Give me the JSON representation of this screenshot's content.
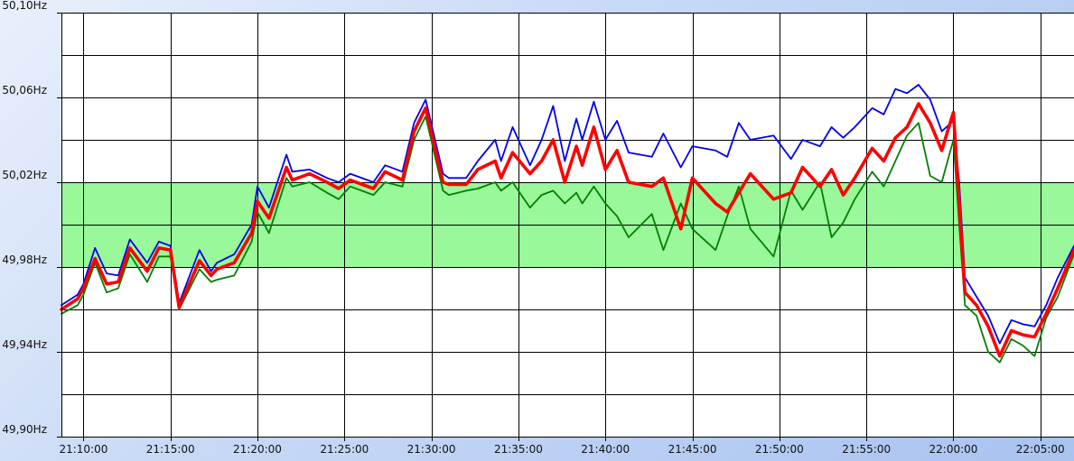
{
  "chart_data": {
    "type": "line",
    "title": "",
    "xlabel": "",
    "ylabel": "",
    "y_unit": "Hz",
    "ylim": [
      49.9,
      50.1
    ],
    "y_ticks": [
      "50,10Hz",
      "50,06Hz",
      "50,02Hz",
      "49,98Hz",
      "49,94Hz",
      "49,90Hz"
    ],
    "y_tick_values": [
      50.1,
      50.06,
      50.02,
      49.98,
      49.94,
      49.9
    ],
    "x_ticks": [
      "21:10:00",
      "21:15:00",
      "21:20:00",
      "21:25:00",
      "21:30:00",
      "21:35:00",
      "21:40:00",
      "21:45:00",
      "21:50:00",
      "21:55:00",
      "22:00:00",
      "22:05:00"
    ],
    "xlim": [
      "21:08:44",
      "22:06:56"
    ],
    "grid": true,
    "band": {
      "from": 49.98,
      "to": 50.02,
      "color": "#99f899"
    },
    "series": [
      {
        "color": "#0000ee",
        "x": [
          "21:08:44",
          "21:09:40",
          "21:10:00",
          "21:10:40",
          "21:11:20",
          "21:12:00",
          "21:12:40",
          "21:13:40",
          "21:14:20",
          "21:15:00",
          "21:15:30",
          "21:16:40",
          "21:17:20",
          "21:17:40",
          "21:18:40",
          "21:19:40",
          "21:20:00",
          "21:20:40",
          "21:21:40",
          "21:22:00",
          "21:23:00",
          "21:24:00",
          "21:24:40",
          "21:25:20",
          "21:26:40",
          "21:27:20",
          "21:28:20",
          "21:29:00",
          "21:29:40",
          "21:30:40",
          "21:31:00",
          "21:32:00",
          "21:32:40",
          "21:33:40",
          "21:34:00",
          "21:34:40",
          "21:35:40",
          "21:36:20",
          "21:37:00",
          "21:37:40",
          "21:38:20",
          "21:38:40",
          "21:39:20",
          "21:40:00",
          "21:40:40",
          "21:41:20",
          "21:42:40",
          "21:43:20",
          "21:44:20",
          "21:45:00",
          "21:46:20",
          "21:47:00",
          "21:47:40",
          "21:48:20",
          "21:49:40",
          "21:50:40",
          "21:51:20",
          "21:52:20",
          "21:53:00",
          "21:53:40",
          "21:54:20",
          "21:55:20",
          "21:56:00",
          "21:56:40",
          "21:57:20",
          "21:58:00",
          "21:58:40",
          "21:59:20",
          "22:00:00",
          "22:00:20",
          "22:00:40",
          "22:01:20",
          "22:02:00",
          "22:02:40",
          "22:03:20",
          "22:04:00",
          "22:04:40",
          "22:05:20",
          "22:06:00",
          "22:06:56"
        ],
        "values": [
          49.962,
          49.967,
          49.972,
          49.989,
          49.977,
          49.976,
          49.993,
          49.982,
          49.992,
          49.99,
          49.963,
          49.988,
          49.978,
          49.982,
          49.986,
          50.0,
          50.018,
          50.008,
          50.033,
          50.025,
          50.026,
          50.022,
          50.02,
          50.024,
          50.02,
          50.028,
          50.025,
          50.048,
          50.059,
          50.024,
          50.022,
          50.022,
          50.03,
          50.04,
          50.03,
          50.046,
          50.028,
          50.04,
          50.056,
          50.03,
          50.05,
          50.04,
          50.058,
          50.04,
          50.049,
          50.034,
          50.032,
          50.043,
          50.027,
          50.037,
          50.035,
          50.032,
          50.048,
          50.04,
          50.042,
          50.031,
          50.04,
          50.037,
          50.046,
          50.041,
          50.046,
          50.055,
          50.052,
          50.064,
          50.062,
          50.066,
          50.059,
          50.044,
          50.049,
          50.02,
          49.975,
          49.966,
          49.957,
          49.944,
          49.955,
          49.953,
          49.952,
          49.962,
          49.975,
          49.99
        ]
      },
      {
        "color": "#ff0000",
        "x": [
          "21:08:44",
          "21:09:40",
          "21:10:00",
          "21:10:40",
          "21:11:20",
          "21:12:00",
          "21:12:40",
          "21:13:40",
          "21:14:20",
          "21:15:00",
          "21:15:30",
          "21:16:40",
          "21:17:20",
          "21:17:40",
          "21:18:40",
          "21:19:40",
          "21:20:00",
          "21:20:40",
          "21:21:40",
          "21:22:00",
          "21:23:00",
          "21:24:00",
          "21:24:40",
          "21:25:20",
          "21:26:40",
          "21:27:20",
          "21:28:20",
          "21:29:00",
          "21:29:40",
          "21:30:40",
          "21:31:00",
          "21:32:00",
          "21:32:40",
          "21:33:40",
          "21:34:00",
          "21:34:40",
          "21:35:40",
          "21:36:20",
          "21:37:00",
          "21:37:40",
          "21:38:20",
          "21:38:40",
          "21:39:20",
          "21:40:00",
          "21:40:40",
          "21:41:20",
          "21:42:40",
          "21:43:20",
          "21:44:20",
          "21:45:00",
          "21:46:20",
          "21:47:00",
          "21:47:40",
          "21:48:20",
          "21:49:40",
          "21:50:40",
          "21:51:20",
          "21:52:20",
          "21:53:00",
          "21:53:40",
          "21:54:20",
          "21:55:20",
          "21:56:00",
          "21:56:40",
          "21:57:20",
          "21:58:00",
          "21:58:40",
          "21:59:20",
          "22:00:00",
          "22:00:20",
          "22:00:40",
          "22:01:20",
          "22:02:00",
          "22:02:40",
          "22:03:20",
          "22:04:00",
          "22:04:40",
          "22:05:20",
          "22:06:00",
          "22:06:56"
        ],
        "values": [
          49.96,
          49.965,
          49.97,
          49.984,
          49.972,
          49.973,
          49.989,
          49.978,
          49.989,
          49.988,
          49.961,
          49.983,
          49.976,
          49.979,
          49.982,
          49.996,
          50.011,
          50.003,
          50.027,
          50.021,
          50.024,
          50.02,
          50.017,
          50.021,
          50.017,
          50.025,
          50.021,
          50.044,
          50.055,
          50.02,
          50.019,
          50.019,
          50.026,
          50.03,
          50.022,
          50.034,
          50.024,
          50.03,
          50.04,
          50.02,
          50.037,
          50.028,
          50.046,
          50.026,
          50.035,
          50.02,
          50.018,
          50.022,
          49.998,
          50.022,
          50.01,
          50.006,
          50.015,
          50.024,
          50.012,
          50.015,
          50.027,
          50.018,
          50.026,
          50.014,
          50.022,
          50.036,
          50.03,
          50.041,
          50.046,
          50.057,
          50.048,
          50.035,
          50.053,
          50.01,
          49.968,
          49.962,
          49.952,
          49.938,
          49.95,
          49.948,
          49.947,
          49.958,
          49.97,
          49.988
        ]
      },
      {
        "color": "#008000",
        "x": [
          "21:08:44",
          "21:09:40",
          "21:10:00",
          "21:10:40",
          "21:11:20",
          "21:12:00",
          "21:12:40",
          "21:13:40",
          "21:14:20",
          "21:15:00",
          "21:15:30",
          "21:16:40",
          "21:17:20",
          "21:17:40",
          "21:18:40",
          "21:19:40",
          "21:20:00",
          "21:20:40",
          "21:21:40",
          "21:22:00",
          "21:23:00",
          "21:24:00",
          "21:24:40",
          "21:25:20",
          "21:26:40",
          "21:27:20",
          "21:28:20",
          "21:29:00",
          "21:29:40",
          "21:30:40",
          "21:31:00",
          "21:32:00",
          "21:32:40",
          "21:33:40",
          "21:34:00",
          "21:34:40",
          "21:35:40",
          "21:36:20",
          "21:37:00",
          "21:37:40",
          "21:38:20",
          "21:38:40",
          "21:39:20",
          "21:40:00",
          "21:40:40",
          "21:41:20",
          "21:42:40",
          "21:43:20",
          "21:44:20",
          "21:45:00",
          "21:46:20",
          "21:47:00",
          "21:47:40",
          "21:48:20",
          "21:49:40",
          "21:50:40",
          "21:51:20",
          "21:52:20",
          "21:53:00",
          "21:53:40",
          "21:54:20",
          "21:55:20",
          "21:56:00",
          "21:56:40",
          "21:57:20",
          "21:58:00",
          "21:58:40",
          "21:59:20",
          "22:00:00",
          "22:00:20",
          "22:00:40",
          "22:01:20",
          "22:02:00",
          "22:02:40",
          "22:03:20",
          "22:04:00",
          "22:04:40",
          "22:05:20",
          "22:06:00",
          "22:06:56"
        ],
        "values": [
          49.958,
          49.962,
          49.967,
          49.982,
          49.968,
          49.97,
          49.986,
          49.973,
          49.985,
          49.985,
          49.96,
          49.979,
          49.973,
          49.974,
          49.976,
          49.992,
          50.006,
          49.996,
          50.022,
          50.018,
          50.02,
          50.015,
          50.012,
          50.018,
          50.014,
          50.02,
          50.018,
          50.04,
          50.051,
          50.016,
          50.014,
          50.016,
          50.017,
          50.02,
          50.016,
          50.02,
          50.008,
          50.014,
          50.016,
          50.01,
          50.015,
          50.01,
          50.018,
          50.01,
          50.004,
          49.994,
          50.005,
          49.988,
          50.01,
          49.998,
          49.988,
          50.004,
          50.018,
          49.998,
          49.985,
          50.016,
          50.007,
          50.02,
          49.994,
          50.001,
          50.012,
          50.025,
          50.018,
          50.03,
          50.042,
          50.048,
          50.023,
          50.02,
          50.04,
          50.0,
          49.962,
          49.957,
          49.94,
          49.935,
          49.946,
          49.943,
          49.938,
          49.956,
          49.966,
          49.986
        ]
      }
    ]
  }
}
